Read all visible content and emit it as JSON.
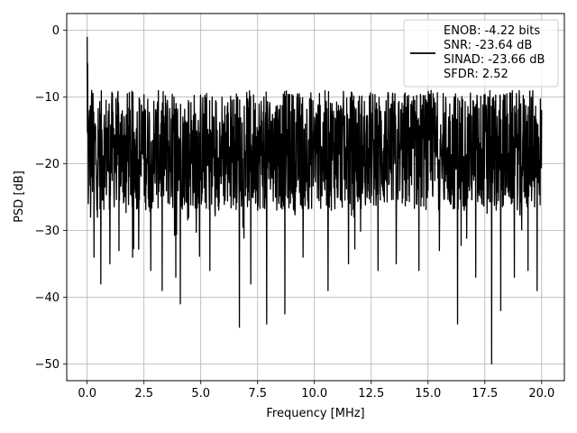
{
  "chart_data": {
    "type": "line",
    "title": "",
    "xlabel": "Frequency [MHz]",
    "ylabel": "PSD [dB]",
    "xlim": [
      -0.9,
      21.0
    ],
    "ylim": [
      -52.5,
      2.5
    ],
    "x_ticks": [
      0.0,
      2.5,
      5.0,
      7.5,
      10.0,
      12.5,
      15.0,
      17.5,
      20.0
    ],
    "x_tick_labels": [
      "0.0",
      "2.5",
      "5.0",
      "7.5",
      "10.0",
      "12.5",
      "15.0",
      "17.5",
      "20.0"
    ],
    "y_ticks": [
      0,
      -10,
      -20,
      -30,
      -40,
      -50
    ],
    "y_tick_labels": [
      "0",
      "−10",
      "−20",
      "−30",
      "−40",
      "−50"
    ],
    "grid": true,
    "legend_placement": "upper-right",
    "line_color": "#000000",
    "series": [
      {
        "name": "ENOB: -4.22 bits\nSNR: -23.64 dB\nSINAD: -23.66 dB\nSFDR: 2.52",
        "color": "#000000",
        "noise_band_lower": -27,
        "noise_band_upper": -9,
        "x": [
          0.0,
          0.02,
          0.05,
          0.1,
          0.15,
          0.2,
          0.3,
          0.35,
          0.45,
          0.6,
          0.8,
          1.0,
          1.4,
          2.0,
          2.8,
          3.3,
          3.9,
          4.1,
          5.4,
          6.7,
          7.2,
          7.9,
          8.7,
          9.5,
          10.6,
          11.5,
          12.8,
          13.6,
          14.6,
          15.5,
          16.3,
          17.1,
          17.8,
          18.2,
          18.8,
          19.4,
          19.8,
          20.0
        ],
        "y": [
          -1.0,
          -5.0,
          -26.0,
          -12.0,
          -28.0,
          -9.0,
          -34.0,
          -14.0,
          -28.0,
          -38.0,
          -18.0,
          -35.0,
          -33.0,
          -34.0,
          -36.0,
          -39.0,
          -37.0,
          -41.0,
          -36.0,
          -44.5,
          -38.0,
          -44.0,
          -42.5,
          -34.0,
          -39.0,
          -35.0,
          -36.0,
          -35.0,
          -36.0,
          -33.0,
          -44.0,
          -37.0,
          -50.0,
          -42.0,
          -37.0,
          -36.0,
          -39.0,
          -12.0
        ]
      }
    ]
  }
}
